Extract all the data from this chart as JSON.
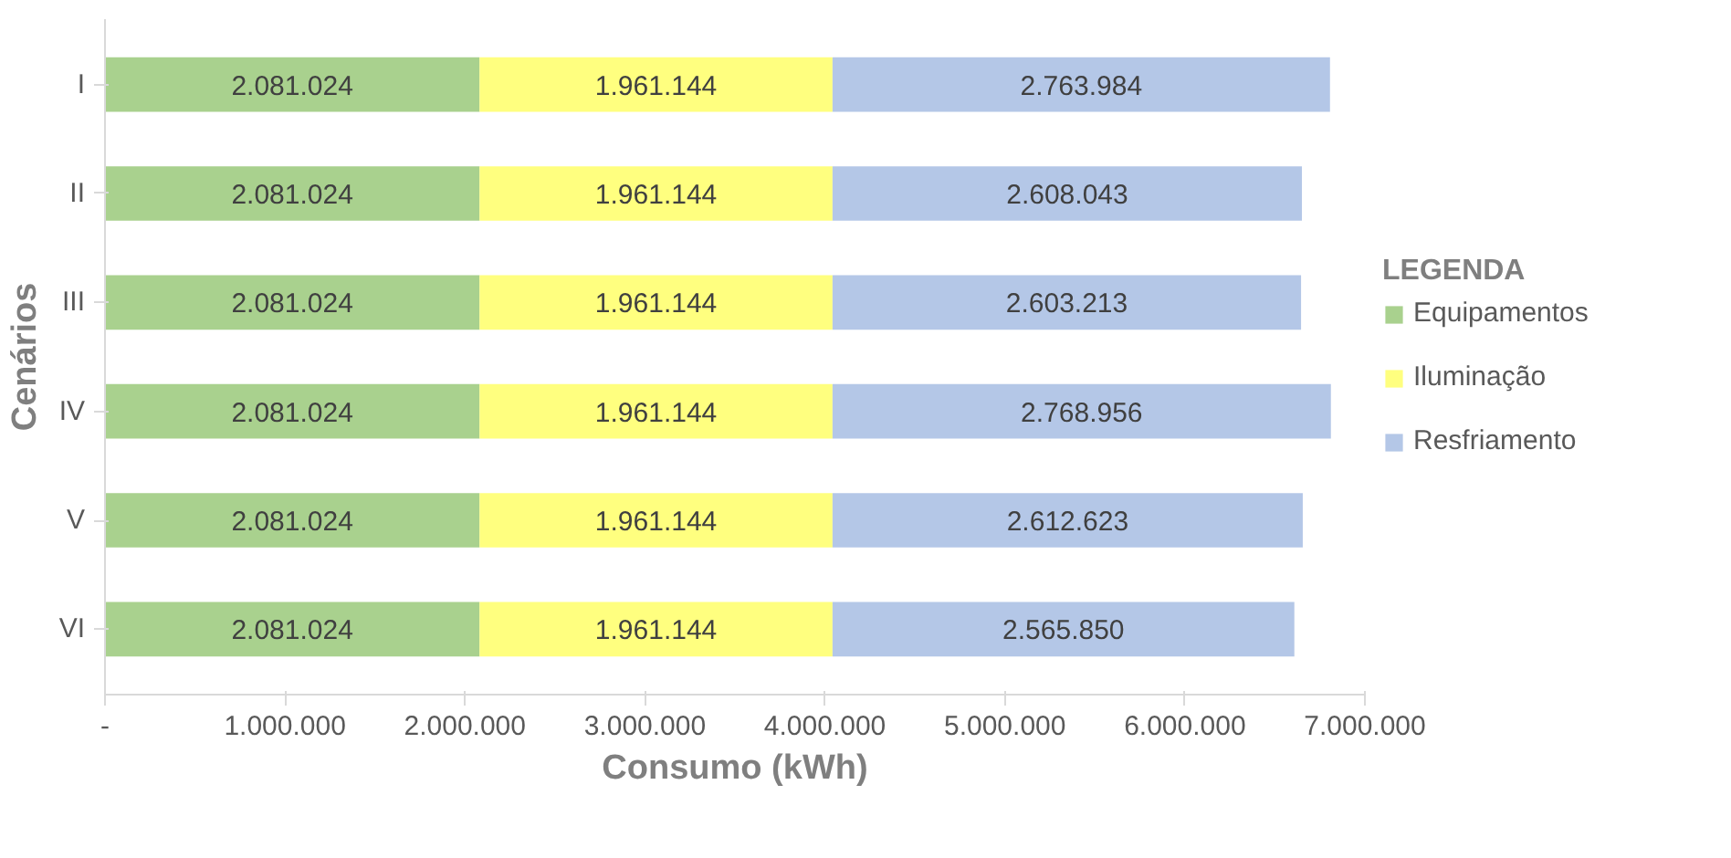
{
  "chart_data": {
    "type": "bar",
    "orientation": "horizontal",
    "stacked": true,
    "ylabel": "Cenários",
    "xlabel": "Consumo (kWh)",
    "legend_title": "LEGENDA",
    "legend": "right",
    "grid": false,
    "categories": [
      "I",
      "II",
      "III",
      "IV",
      "V",
      "VI"
    ],
    "xlim": [
      0,
      7000000
    ],
    "xticks": [
      {
        "value": 0,
        "label": "-"
      },
      {
        "value": 1000000,
        "label": "1.000.000"
      },
      {
        "value": 2000000,
        "label": "2.000.000"
      },
      {
        "value": 3000000,
        "label": "3.000.000"
      },
      {
        "value": 4000000,
        "label": "4.000.000"
      },
      {
        "value": 5000000,
        "label": "5.000.000"
      },
      {
        "value": 6000000,
        "label": "6.000.000"
      },
      {
        "value": 7000000,
        "label": "7.000.000"
      }
    ],
    "series": [
      {
        "name": "Equipamentos",
        "color": "#a9d18e",
        "values": [
          2081024,
          2081024,
          2081024,
          2081024,
          2081024,
          2081024
        ],
        "value_labels": [
          "2.081.024",
          "2.081.024",
          "2.081.024",
          "2.081.024",
          "2.081.024",
          "2.081.024"
        ]
      },
      {
        "name": "Iluminação",
        "color": "#ffff7f",
        "values": [
          1961144,
          1961144,
          1961144,
          1961144,
          1961144,
          1961144
        ],
        "value_labels": [
          "1.961.144",
          "1.961.144",
          "1.961.144",
          "1.961.144",
          "1.961.144",
          "1.961.144"
        ]
      },
      {
        "name": "Resfriamento",
        "color": "#b4c7e7",
        "values": [
          2763984,
          2608043,
          2603213,
          2768956,
          2612623,
          2565850
        ],
        "value_labels": [
          "2.763.984",
          "2.608.043",
          "2.603.213",
          "2.768.956",
          "2.612.623",
          "2.565.850"
        ]
      }
    ]
  }
}
